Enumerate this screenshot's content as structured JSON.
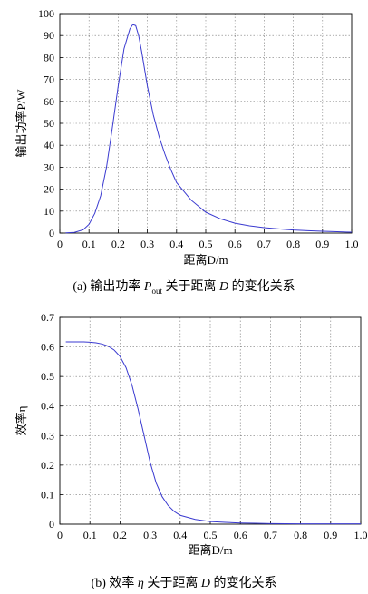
{
  "chart_data": [
    {
      "type": "line",
      "xlabel": "距离D/m",
      "ylabel": "输出功率P/W",
      "caption": "(a) 输出功率 Pout 关于距离 D 的变化关系",
      "caption_parts": {
        "prefix": "(a)",
        "text1": "输出功率 ",
        "sym": "P",
        "sub": "out",
        "text2": " 关于距离 ",
        "sym2": "D",
        "text3": " 的变化关系"
      },
      "xlim": [
        0,
        1.0
      ],
      "ylim": [
        0,
        100
      ],
      "xticks": [
        "0",
        "0.1",
        "0.2",
        "0.3",
        "0.4",
        "0.5",
        "0.6",
        "0.7",
        "0.8",
        "0.9",
        "1.0"
      ],
      "yticks": [
        "0",
        "10",
        "20",
        "30",
        "40",
        "50",
        "60",
        "70",
        "80",
        "90",
        "100"
      ],
      "grid": true,
      "x": [
        0.02,
        0.05,
        0.08,
        0.1,
        0.12,
        0.14,
        0.16,
        0.18,
        0.2,
        0.22,
        0.24,
        0.25,
        0.26,
        0.27,
        0.28,
        0.3,
        0.32,
        0.34,
        0.36,
        0.38,
        0.4,
        0.45,
        0.5,
        0.55,
        0.6,
        0.65,
        0.7,
        0.75,
        0.8,
        0.85,
        0.9,
        0.95,
        1.0
      ],
      "y": [
        0.1,
        0.3,
        1.5,
        4,
        9,
        17,
        30,
        48,
        67,
        84,
        93,
        95,
        94.5,
        90,
        83,
        67,
        54,
        44,
        36,
        29,
        23,
        15,
        9.5,
        6.5,
        4.5,
        3.3,
        2.5,
        1.9,
        1.4,
        1.1,
        0.8,
        0.6,
        0.4
      ]
    },
    {
      "type": "line",
      "xlabel": "距离D/m",
      "ylabel": "效率η",
      "caption": "(b) 效率 η 关于距离 D 的变化关系",
      "caption_parts": {
        "prefix": "(b)",
        "text1": "效率 ",
        "sym": "η",
        "text2": " 关于距离 ",
        "sym2": "D",
        "text3": " 的变化关系"
      },
      "xlim": [
        0,
        1.0
      ],
      "ylim": [
        0,
        0.7
      ],
      "xticks": [
        "0",
        "0.1",
        "0.2",
        "0.3",
        "0.4",
        "0.5",
        "0.6",
        "0.7",
        "0.8",
        "0.9",
        "1.0"
      ],
      "yticks": [
        "0",
        "0.1",
        "0.2",
        "0.3",
        "0.4",
        "0.5",
        "0.6",
        "0.7"
      ],
      "grid": true,
      "x": [
        0.02,
        0.05,
        0.08,
        0.1,
        0.12,
        0.14,
        0.16,
        0.18,
        0.2,
        0.22,
        0.24,
        0.26,
        0.28,
        0.3,
        0.32,
        0.34,
        0.36,
        0.38,
        0.4,
        0.45,
        0.5,
        0.55,
        0.6,
        0.65,
        0.7,
        0.8,
        0.9,
        1.0
      ],
      "y": [
        0.617,
        0.617,
        0.617,
        0.616,
        0.614,
        0.61,
        0.603,
        0.59,
        0.568,
        0.53,
        0.47,
        0.39,
        0.3,
        0.21,
        0.14,
        0.093,
        0.063,
        0.043,
        0.03,
        0.016,
        0.009,
        0.006,
        0.004,
        0.003,
        0.002,
        0.001,
        0.001,
        0.001
      ]
    }
  ]
}
